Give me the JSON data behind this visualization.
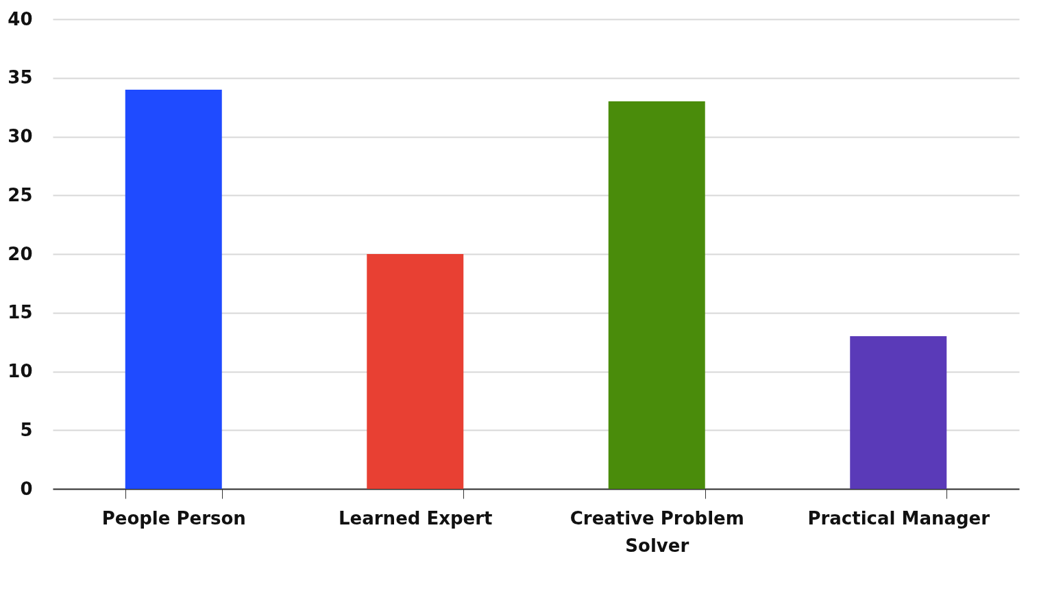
{
  "chart_data": {
    "type": "bar",
    "categories": [
      "People Person",
      "Learned Expert",
      "Creative Problem Solver",
      "Practical Manager"
    ],
    "values": [
      34,
      20,
      33,
      13
    ],
    "colors": [
      "#1f4bff",
      "#e84033",
      "#4a8c0b",
      "#5a3ab8"
    ],
    "ylim": [
      0,
      40
    ],
    "yticks": [
      0,
      5,
      10,
      15,
      20,
      25,
      30,
      35,
      40
    ],
    "grid": "y",
    "legend": false
  }
}
